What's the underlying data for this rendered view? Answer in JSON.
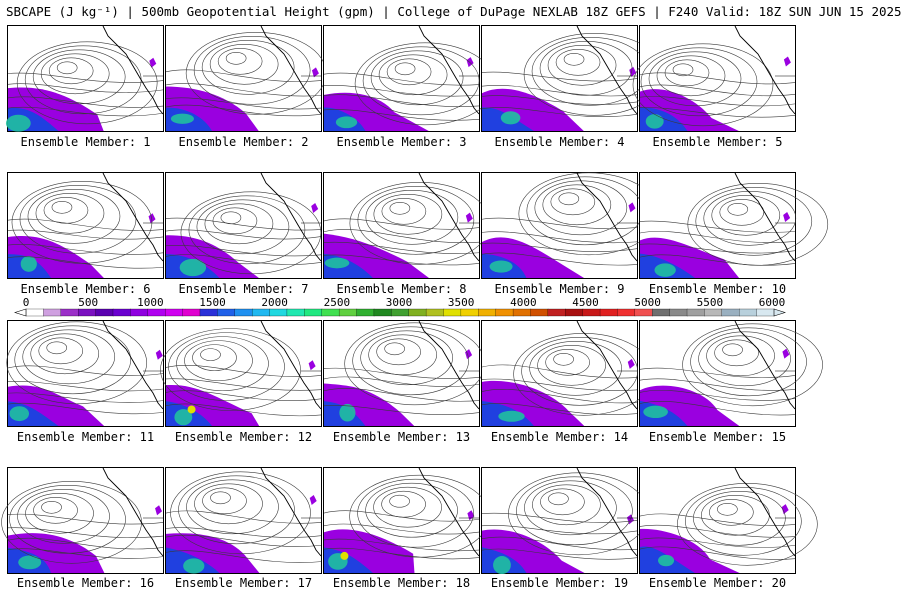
{
  "header": {
    "title": "SBCAPE (J kg⁻¹) | 500mb Geopotential Height (gpm) | College of DuPage NEXLAB 18Z GEFS | F240 Valid: 18Z SUN JUN 15 2025"
  },
  "members": [
    {
      "label": "Ensemble Member: 1"
    },
    {
      "label": "Ensemble Member: 2"
    },
    {
      "label": "Ensemble Member: 3"
    },
    {
      "label": "Ensemble Member: 4"
    },
    {
      "label": "Ensemble Member: 5"
    },
    {
      "label": "Ensemble Member: 6"
    },
    {
      "label": "Ensemble Member: 7"
    },
    {
      "label": "Ensemble Member: 8"
    },
    {
      "label": "Ensemble Member: 9"
    },
    {
      "label": "Ensemble Member: 10"
    },
    {
      "label": "Ensemble Member: 11"
    },
    {
      "label": "Ensemble Member: 12"
    },
    {
      "label": "Ensemble Member: 13"
    },
    {
      "label": "Ensemble Member: 14"
    },
    {
      "label": "Ensemble Member: 15"
    },
    {
      "label": "Ensemble Member: 16"
    },
    {
      "label": "Ensemble Member: 17"
    },
    {
      "label": "Ensemble Member: 18"
    },
    {
      "label": "Ensemble Member: 19"
    },
    {
      "label": "Ensemble Member: 20"
    }
  ],
  "colorbar": {
    "labels": [
      "0",
      "500",
      "1000",
      "1500",
      "2000",
      "2500",
      "3000",
      "3500",
      "4000",
      "4500",
      "5000",
      "5500",
      "6000"
    ],
    "min": 0,
    "max": 6000,
    "colors": [
      "#ffffff",
      "#cfa0e0",
      "#9b30c8",
      "#7a10c0",
      "#5a00b0",
      "#6a00d0",
      "#9000e0",
      "#b000f0",
      "#d000f0",
      "#e000d0",
      "#2a30d8",
      "#2060e8",
      "#1f90f0",
      "#20b8f0",
      "#20d8e0",
      "#20e8b0",
      "#20e880",
      "#40e050",
      "#60d040",
      "#30b030",
      "#208820",
      "#40a030",
      "#80b020",
      "#b0c020",
      "#e0e000",
      "#f0d000",
      "#f0b000",
      "#f09000",
      "#e07000",
      "#d05000",
      "#c02020",
      "#a81010",
      "#c81818",
      "#e02020",
      "#f03030",
      "#f05050",
      "#707070",
      "#8a8a8a",
      "#a0a0a0",
      "#b8b8b8",
      "#9ab0c0",
      "#b8d0dc",
      "#d8e8f0"
    ]
  },
  "palette": {
    "contour": "#3a3a3a",
    "coast": "#000000",
    "cape_low": "#9a00e0",
    "cape_mid": "#2040e0",
    "cape_high": "#20c0a0",
    "cape_peak": "#e0e000"
  }
}
